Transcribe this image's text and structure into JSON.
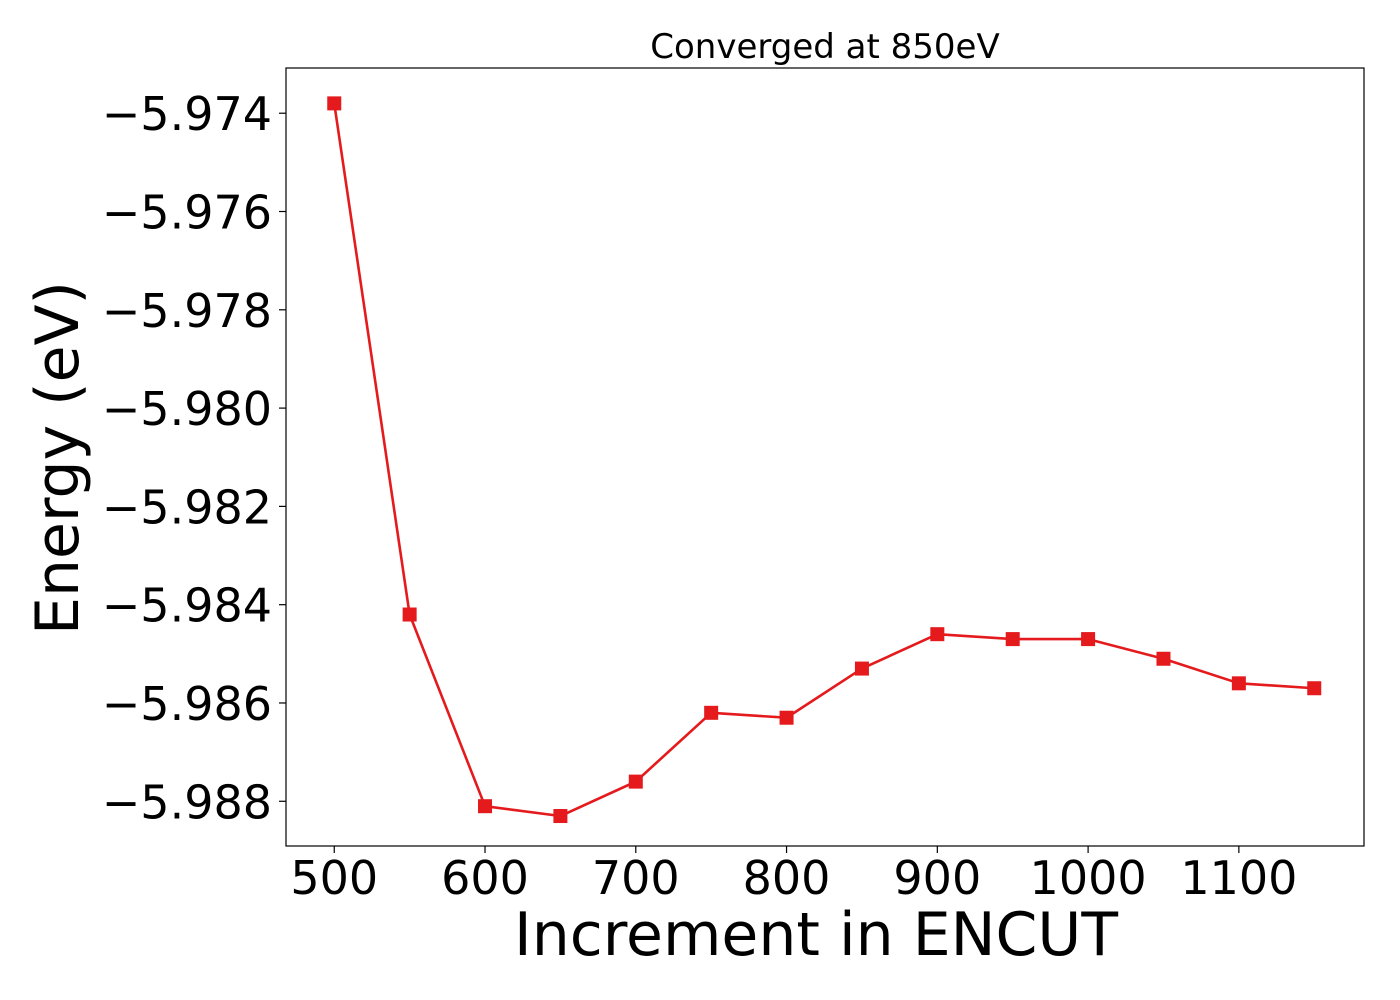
{
  "chart_data": {
    "type": "line",
    "title": "Converged at 850eV",
    "xlabel": "Increment in ENCUT",
    "ylabel": "Energy (eV)",
    "x": [
      500,
      550,
      600,
      650,
      700,
      750,
      800,
      850,
      900,
      950,
      1000,
      1050,
      1100,
      1150
    ],
    "series": [
      {
        "values": [
          -5.9738,
          -5.9842,
          -5.9881,
          -5.9883,
          -5.9876,
          -5.9862,
          -5.9863,
          -5.9853,
          -5.9846,
          -5.9847,
          -5.9847,
          -5.9851,
          -5.9856,
          -5.9857
        ],
        "color": "#e41a1c",
        "marker": "square"
      }
    ],
    "xlim": [
      468,
      1183
    ],
    "ylim": [
      -5.98891,
      -5.97308
    ],
    "xticks": [
      500,
      600,
      700,
      800,
      900,
      1000,
      1100
    ],
    "xtick_labels": [
      "500",
      "600",
      "700",
      "800",
      "900",
      "1000",
      "1100"
    ],
    "yticks": [
      -5.974,
      -5.976,
      -5.978,
      -5.98,
      -5.982,
      -5.984,
      -5.986,
      -5.988
    ],
    "ytick_labels": [
      "−5.974",
      "−5.976",
      "−5.978",
      "−5.980",
      "−5.982",
      "−5.984",
      "−5.986",
      "−5.988"
    ],
    "grid": false,
    "legend": false
  }
}
